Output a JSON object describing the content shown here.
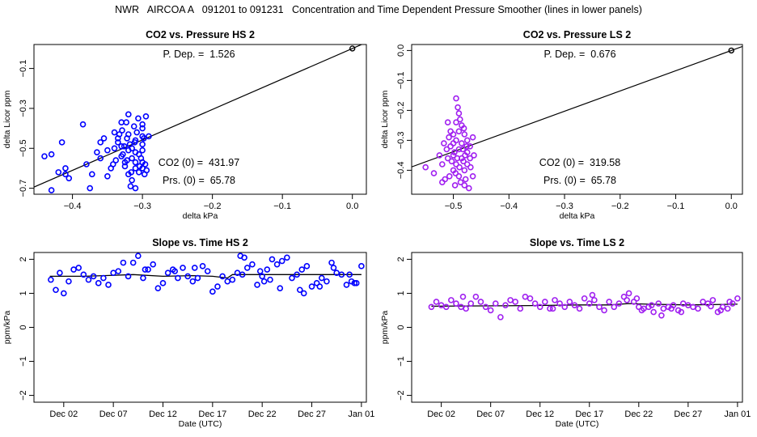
{
  "page_title": "NWR   AIRCOA A   091201 to 091231   Concentration and Time Dependent Pressure Smoother (lines in lower panels)",
  "colors": {
    "hs": "#0000ff",
    "ls": "#a020f0",
    "line": "#000000"
  },
  "chart_data": [
    {
      "id": "hs-scatter",
      "type": "scatter",
      "title": "CO2 vs. Pressure HS 2",
      "xlabel": "delta kPa",
      "ylabel": "delta Licor ppm",
      "xlim": [
        -0.455,
        0.02
      ],
      "ylim": [
        -0.73,
        0.02
      ],
      "xticks": [
        -0.4,
        -0.3,
        -0.2,
        -0.1,
        0.0
      ],
      "xtick_labels": [
        "−0.4",
        "−0.3",
        "−0.2",
        "−0.1",
        "0.0"
      ],
      "yticks": [
        -0.7,
        -0.5,
        -0.3,
        -0.1
      ],
      "ytick_labels": [
        "−0.7",
        "−0.5",
        "−0.3",
        "−0.1"
      ],
      "fit_slope": 1.526,
      "annotations": {
        "p_dep": "P. Dep. =  1.526",
        "co2_0": "CO2 (0) =  431.97",
        "prs_0": "Prs. (0) =  65.78"
      },
      "ref_point": [
        0.0,
        0.0
      ],
      "points": [
        [
          -0.44,
          -0.54
        ],
        [
          -0.43,
          -0.53
        ],
        [
          -0.42,
          -0.62
        ],
        [
          -0.41,
          -0.6
        ],
        [
          -0.415,
          -0.47
        ],
        [
          -0.405,
          -0.65
        ],
        [
          -0.43,
          -0.71
        ],
        [
          -0.385,
          -0.38
        ],
        [
          -0.375,
          -0.7
        ],
        [
          -0.38,
          -0.58
        ],
        [
          -0.36,
          -0.55
        ],
        [
          -0.35,
          -0.51
        ],
        [
          -0.345,
          -0.6
        ],
        [
          -0.35,
          -0.64
        ],
        [
          -0.34,
          -0.42
        ],
        [
          -0.335,
          -0.45
        ],
        [
          -0.33,
          -0.49
        ],
        [
          -0.33,
          -0.54
        ],
        [
          -0.325,
          -0.57
        ],
        [
          -0.33,
          -0.37
        ],
        [
          -0.32,
          -0.43
        ],
        [
          -0.32,
          -0.33
        ],
        [
          -0.315,
          -0.5
        ],
        [
          -0.315,
          -0.55
        ],
        [
          -0.31,
          -0.6
        ],
        [
          -0.31,
          -0.46
        ],
        [
          -0.3,
          -0.44
        ],
        [
          -0.3,
          -0.48
        ],
        [
          -0.305,
          -0.53
        ],
        [
          -0.3,
          -0.57
        ],
        [
          -0.295,
          -0.34
        ],
        [
          -0.3,
          -0.4
        ],
        [
          -0.325,
          -0.59
        ],
        [
          -0.32,
          -0.63
        ],
        [
          -0.315,
          -0.66
        ],
        [
          -0.31,
          -0.7
        ],
        [
          -0.3,
          -0.6
        ],
        [
          -0.305,
          -0.62
        ],
        [
          -0.34,
          -0.5
        ],
        [
          -0.335,
          -0.47
        ],
        [
          -0.32,
          -0.51
        ],
        [
          -0.31,
          -0.52
        ],
        [
          -0.312,
          -0.39
        ],
        [
          -0.308,
          -0.42
        ],
        [
          -0.322,
          -0.45
        ],
        [
          -0.318,
          -0.48
        ],
        [
          -0.328,
          -0.53
        ],
        [
          -0.338,
          -0.56
        ],
        [
          -0.342,
          -0.58
        ],
        [
          -0.3,
          -0.51
        ],
        [
          -0.302,
          -0.55
        ],
        [
          -0.296,
          -0.58
        ],
        [
          -0.294,
          -0.61
        ],
        [
          -0.31,
          -0.57
        ],
        [
          -0.316,
          -0.62
        ],
        [
          -0.36,
          -0.47
        ],
        [
          -0.355,
          -0.45
        ],
        [
          -0.365,
          -0.52
        ],
        [
          -0.372,
          -0.63
        ],
        [
          -0.41,
          -0.63
        ],
        [
          -0.323,
          -0.37
        ],
        [
          -0.329,
          -0.41
        ],
        [
          -0.333,
          -0.43
        ],
        [
          -0.306,
          -0.35
        ],
        [
          -0.3,
          -0.38
        ],
        [
          -0.298,
          -0.45
        ],
        [
          -0.291,
          -0.44
        ],
        [
          -0.317,
          -0.69
        ],
        [
          -0.322,
          -0.56
        ],
        [
          -0.326,
          -0.49
        ],
        [
          -0.311,
          -0.47
        ],
        [
          -0.304,
          -0.59
        ],
        [
          -0.297,
          -0.63
        ]
      ]
    },
    {
      "id": "ls-scatter",
      "type": "scatter",
      "title": "CO2 vs. Pressure LS 2",
      "xlabel": "delta kPa",
      "ylabel": "delta Licor ppm",
      "xlim": [
        -0.575,
        0.02
      ],
      "ylim": [
        -0.48,
        0.02
      ],
      "xticks": [
        -0.5,
        -0.4,
        -0.3,
        -0.2,
        -0.1,
        0.0
      ],
      "xtick_labels": [
        "−0.5",
        "−0.4",
        "−0.3",
        "−0.2",
        "−0.1",
        "0.0"
      ],
      "yticks": [
        -0.4,
        -0.3,
        -0.2,
        -0.1,
        0.0
      ],
      "ytick_labels": [
        "−0.4",
        "−0.3",
        "−0.2",
        "−0.1",
        "0.0"
      ],
      "fit_slope": 0.676,
      "annotations": {
        "p_dep": "P. Dep. =  0.676",
        "co2_0": "CO2 (0) =  319.58",
        "prs_0": "Prs. (0) =  65.78"
      },
      "ref_point": [
        0.0,
        0.0
      ],
      "points": [
        [
          -0.55,
          -0.39
        ],
        [
          -0.535,
          -0.41
        ],
        [
          -0.52,
          -0.38
        ],
        [
          -0.515,
          -0.43
        ],
        [
          -0.51,
          -0.36
        ],
        [
          -0.505,
          -0.32
        ],
        [
          -0.5,
          -0.28
        ],
        [
          -0.5,
          -0.35
        ],
        [
          -0.5,
          -0.4
        ],
        [
          -0.495,
          -0.16
        ],
        [
          -0.495,
          -0.24
        ],
        [
          -0.495,
          -0.3
        ],
        [
          -0.495,
          -0.38
        ],
        [
          -0.49,
          -0.21
        ],
        [
          -0.49,
          -0.27
        ],
        [
          -0.49,
          -0.33
        ],
        [
          -0.49,
          -0.42
        ],
        [
          -0.485,
          -0.25
        ],
        [
          -0.485,
          -0.31
        ],
        [
          -0.485,
          -0.36
        ],
        [
          -0.48,
          -0.28
        ],
        [
          -0.48,
          -0.4
        ],
        [
          -0.48,
          -0.45
        ],
        [
          -0.475,
          -0.3
        ],
        [
          -0.475,
          -0.34
        ],
        [
          -0.475,
          -0.38
        ],
        [
          -0.47,
          -0.32
        ],
        [
          -0.47,
          -0.36
        ],
        [
          -0.465,
          -0.42
        ],
        [
          -0.465,
          -0.29
        ],
        [
          -0.52,
          -0.44
        ],
        [
          -0.51,
          -0.24
        ],
        [
          -0.505,
          -0.27
        ],
        [
          -0.5,
          -0.31
        ],
        [
          -0.492,
          -0.19
        ],
        [
          -0.488,
          -0.23
        ],
        [
          -0.498,
          -0.34
        ],
        [
          -0.482,
          -0.37
        ],
        [
          -0.478,
          -0.43
        ],
        [
          -0.472,
          -0.46
        ],
        [
          -0.508,
          -0.29
        ],
        [
          -0.512,
          -0.33
        ],
        [
          -0.503,
          -0.37
        ],
        [
          -0.496,
          -0.41
        ],
        [
          -0.487,
          -0.44
        ],
        [
          -0.481,
          -0.26
        ],
        [
          -0.476,
          -0.32
        ],
        [
          -0.469,
          -0.39
        ],
        [
          -0.463,
          -0.35
        ],
        [
          -0.525,
          -0.35
        ],
        [
          -0.517,
          -0.31
        ],
        [
          -0.493,
          -0.36
        ],
        [
          -0.489,
          -0.39
        ],
        [
          -0.483,
          -0.33
        ],
        [
          -0.479,
          -0.35
        ],
        [
          -0.497,
          -0.45
        ],
        [
          -0.507,
          -0.42
        ]
      ]
    },
    {
      "id": "hs-time",
      "type": "scatter",
      "title": "Slope vs. Time HS 2",
      "xlabel": "Date (UTC)",
      "ylabel": "ppm/kPa",
      "xlim": [
        -2,
        31.5
      ],
      "ylim": [
        -2.2,
        2.2
      ],
      "xticks": [
        1,
        6,
        11,
        16,
        21,
        26,
        31
      ],
      "xtick_labels": [
        "Dec 02",
        "Dec 07",
        "Dec 12",
        "Dec 17",
        "Dec 22",
        "Dec 27",
        "Jan 01"
      ],
      "yticks": [
        -2,
        -1,
        0,
        1,
        2
      ],
      "ytick_labels": [
        "−2",
        "−1",
        "0",
        "1",
        "2"
      ],
      "smoother": [
        [
          -0.4,
          1.5
        ],
        [
          3,
          1.5
        ],
        [
          5,
          1.52
        ],
        [
          8,
          1.55
        ],
        [
          11,
          1.5
        ],
        [
          14,
          1.52
        ],
        [
          16,
          1.5
        ],
        [
          17.5,
          1.45
        ],
        [
          18,
          1.55
        ],
        [
          21,
          1.55
        ],
        [
          24,
          1.55
        ],
        [
          27,
          1.55
        ],
        [
          31,
          1.55
        ]
      ],
      "points": [
        [
          -0.3,
          1.4
        ],
        [
          0.2,
          1.1
        ],
        [
          0.6,
          1.6
        ],
        [
          1,
          1.0
        ],
        [
          1.5,
          1.35
        ],
        [
          2,
          1.7
        ],
        [
          2.5,
          1.75
        ],
        [
          3,
          1.55
        ],
        [
          3.5,
          1.4
        ],
        [
          4,
          1.5
        ],
        [
          4.5,
          1.3
        ],
        [
          5,
          1.45
        ],
        [
          5.5,
          1.25
        ],
        [
          6,
          1.6
        ],
        [
          6.5,
          1.65
        ],
        [
          7,
          1.9
        ],
        [
          7.5,
          1.5
        ],
        [
          8,
          1.9
        ],
        [
          8.5,
          2.1
        ],
        [
          9,
          1.45
        ],
        [
          9.5,
          1.7
        ],
        [
          10,
          1.85
        ],
        [
          10.5,
          1.15
        ],
        [
          11,
          1.3
        ],
        [
          11.5,
          1.6
        ],
        [
          12,
          1.7
        ],
        [
          12.5,
          1.45
        ],
        [
          13,
          1.75
        ],
        [
          13.5,
          1.5
        ],
        [
          14,
          1.35
        ],
        [
          14.5,
          1.45
        ],
        [
          15,
          1.8
        ],
        [
          15.5,
          1.65
        ],
        [
          16,
          1.05
        ],
        [
          16.5,
          1.2
        ],
        [
          17,
          1.5
        ],
        [
          17.5,
          1.35
        ],
        [
          18,
          1.4
        ],
        [
          18.5,
          1.6
        ],
        [
          19,
          1.55
        ],
        [
          19.5,
          1.75
        ],
        [
          20,
          1.85
        ],
        [
          20.5,
          1.25
        ],
        [
          21,
          1.5
        ],
        [
          21.5,
          1.7
        ],
        [
          22,
          2.0
        ],
        [
          22.5,
          1.85
        ],
        [
          23,
          1.95
        ],
        [
          23.5,
          2.05
        ],
        [
          24,
          1.45
        ],
        [
          24.5,
          1.55
        ],
        [
          25,
          1.7
        ],
        [
          25.5,
          1.8
        ],
        [
          26,
          1.2
        ],
        [
          26.5,
          1.3
        ],
        [
          27,
          1.45
        ],
        [
          27.5,
          1.35
        ],
        [
          28,
          1.9
        ],
        [
          28.5,
          1.6
        ],
        [
          29,
          1.55
        ],
        [
          29.5,
          1.25
        ],
        [
          30,
          1.35
        ],
        [
          30.5,
          1.3
        ],
        [
          31,
          1.8
        ],
        [
          24.8,
          1.1
        ],
        [
          25.2,
          1.0
        ],
        [
          26.8,
          1.2
        ],
        [
          28.2,
          1.75
        ],
        [
          29.8,
          1.55
        ],
        [
          30.3,
          1.3
        ],
        [
          22.8,
          1.15
        ],
        [
          21.2,
          1.35
        ],
        [
          19.2,
          2.05
        ],
        [
          20.8,
          1.65
        ],
        [
          14.2,
          1.75
        ],
        [
          9.2,
          1.7
        ],
        [
          12.2,
          1.65
        ],
        [
          18.8,
          2.1
        ],
        [
          21.8,
          1.4
        ]
      ]
    },
    {
      "id": "ls-time",
      "type": "scatter",
      "title": "Slope vs. Time LS 2",
      "xlabel": "Date (UTC)",
      "ylabel": "ppm/kPa",
      "xlim": [
        -2,
        31.5
      ],
      "ylim": [
        -2.2,
        2.2
      ],
      "xticks": [
        1,
        6,
        11,
        16,
        21,
        26,
        31
      ],
      "xtick_labels": [
        "Dec 02",
        "Dec 07",
        "Dec 12",
        "Dec 17",
        "Dec 22",
        "Dec 27",
        "Jan 01"
      ],
      "yticks": [
        -2,
        -1,
        0,
        1,
        2
      ],
      "ytick_labels": [
        "−2",
        "−1",
        "0",
        "1",
        "2"
      ],
      "smoother": [
        [
          0,
          0.62
        ],
        [
          5,
          0.63
        ],
        [
          10,
          0.64
        ],
        [
          15,
          0.66
        ],
        [
          18,
          0.66
        ],
        [
          20,
          0.7
        ],
        [
          22,
          0.68
        ],
        [
          26,
          0.66
        ],
        [
          31,
          0.68
        ]
      ],
      "points": [
        [
          0,
          0.6
        ],
        [
          0.5,
          0.75
        ],
        [
          1,
          0.65
        ],
        [
          1.5,
          0.6
        ],
        [
          2,
          0.8
        ],
        [
          2.5,
          0.7
        ],
        [
          3,
          0.6
        ],
        [
          3.5,
          0.55
        ],
        [
          4,
          0.7
        ],
        [
          4.5,
          0.9
        ],
        [
          5,
          0.75
        ],
        [
          5.5,
          0.6
        ],
        [
          6,
          0.5
        ],
        [
          6.5,
          0.7
        ],
        [
          7,
          0.3
        ],
        [
          7.5,
          0.65
        ],
        [
          8,
          0.8
        ],
        [
          8.5,
          0.75
        ],
        [
          9,
          0.55
        ],
        [
          9.5,
          0.9
        ],
        [
          10,
          0.85
        ],
        [
          10.5,
          0.7
        ],
        [
          11,
          0.6
        ],
        [
          11.5,
          0.75
        ],
        [
          12,
          0.55
        ],
        [
          12.5,
          0.8
        ],
        [
          13,
          0.7
        ],
        [
          13.5,
          0.6
        ],
        [
          14,
          0.75
        ],
        [
          14.5,
          0.65
        ],
        [
          15,
          0.55
        ],
        [
          15.5,
          0.85
        ],
        [
          16,
          0.7
        ],
        [
          16.5,
          0.8
        ],
        [
          17,
          0.6
        ],
        [
          17.5,
          0.5
        ],
        [
          18,
          0.75
        ],
        [
          18.5,
          0.6
        ],
        [
          19,
          0.7
        ],
        [
          19.5,
          0.9
        ],
        [
          20,
          1.0
        ],
        [
          20.5,
          0.75
        ],
        [
          21,
          0.6
        ],
        [
          21.5,
          0.55
        ],
        [
          22,
          0.6
        ],
        [
          22.5,
          0.45
        ],
        [
          23,
          0.7
        ],
        [
          23.5,
          0.55
        ],
        [
          24,
          0.6
        ],
        [
          24.5,
          0.65
        ],
        [
          25,
          0.5
        ],
        [
          25.5,
          0.7
        ],
        [
          26,
          0.65
        ],
        [
          26.5,
          0.6
        ],
        [
          27,
          0.55
        ],
        [
          27.5,
          0.75
        ],
        [
          28,
          0.7
        ],
        [
          28.5,
          0.8
        ],
        [
          29,
          0.45
        ],
        [
          29.5,
          0.6
        ],
        [
          30,
          0.55
        ],
        [
          30.5,
          0.7
        ],
        [
          31,
          0.85
        ],
        [
          20.8,
          0.85
        ],
        [
          21.3,
          0.5
        ],
        [
          22.3,
          0.65
        ],
        [
          23.3,
          0.35
        ],
        [
          24.3,
          0.55
        ],
        [
          29.3,
          0.5
        ],
        [
          30.2,
          0.75
        ],
        [
          3.2,
          0.9
        ],
        [
          12.3,
          0.55
        ],
        [
          16.3,
          0.95
        ],
        [
          25.3,
          0.45
        ],
        [
          28.3,
          0.62
        ],
        [
          19.8,
          0.8
        ]
      ]
    }
  ]
}
